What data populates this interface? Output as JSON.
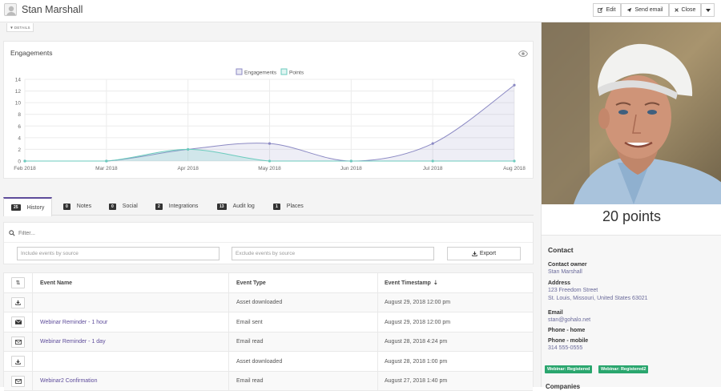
{
  "header": {
    "title": "Stan Marshall",
    "edit_label": "Edit",
    "send_email_label": "Send email",
    "close_label": "Close"
  },
  "details_toggle": "DETAILS",
  "engagements": {
    "title": "Engagements"
  },
  "chart_data": {
    "type": "area",
    "title": "",
    "categories": [
      "Feb 2018",
      "Mar 2018",
      "Apr 2018",
      "May 2018",
      "Jun 2018",
      "Jul 2018",
      "Aug 2018"
    ],
    "series": [
      {
        "name": "Engagements",
        "values": [
          0,
          0,
          2,
          3,
          0,
          3,
          13
        ],
        "color": "#8c8ac4"
      },
      {
        "name": "Points",
        "values": [
          0,
          0,
          2,
          0,
          0,
          0,
          0
        ],
        "color": "#6bcbbd"
      }
    ],
    "ylim": [
      0,
      14
    ],
    "yticks": [
      0,
      2,
      4,
      6,
      8,
      10,
      12,
      14
    ],
    "grid": true,
    "legend_position": "top-center"
  },
  "tabs": [
    {
      "count": "25",
      "label": "History"
    },
    {
      "count": "0",
      "label": "Notes"
    },
    {
      "count": "0",
      "label": "Social"
    },
    {
      "count": "2",
      "label": "Integrations"
    },
    {
      "count": "13",
      "label": "Audit log"
    },
    {
      "count": "1",
      "label": "Places"
    }
  ],
  "filter": {
    "placeholder": "Filter...",
    "include_placeholder": "Include events by source",
    "exclude_placeholder": "Exclude events by source",
    "export_label": "Export"
  },
  "table": {
    "headers": {
      "name": "Event Name",
      "type": "Event Type",
      "timestamp": "Event Timestamp"
    },
    "rows": [
      {
        "name": "",
        "type": "Asset downloaded",
        "timestamp": "August 29, 2018 12:00 pm",
        "icon": "download-icon"
      },
      {
        "name": "Webinar Reminder - 1 hour",
        "type": "Email sent",
        "timestamp": "August 29, 2018 12:00 pm",
        "icon": "envelope-icon"
      },
      {
        "name": "Webinar Reminder - 1 day",
        "type": "Email read",
        "timestamp": "August 28, 2018 4:24 pm",
        "icon": "envelope-open-icon"
      },
      {
        "name": "",
        "type": "Asset downloaded",
        "timestamp": "August 28, 2018 1:00 pm",
        "icon": "download-icon"
      },
      {
        "name": "Webinar2 Confirmation",
        "type": "Email read",
        "timestamp": "August 27, 2018 1:40 pm",
        "icon": "envelope-open-icon"
      }
    ]
  },
  "sidebar": {
    "points": "20 points",
    "contact_heading": "Contact",
    "owner_label": "Contact owner",
    "owner_value": "Stan Marshall",
    "address_label": "Address",
    "address_line1": "123 Freedom Street",
    "address_line2": "St. Louis, Missouri, United States 63021",
    "email_label": "Email",
    "email_value": "stan@gohalo.net",
    "phone_home_label": "Phone - home",
    "phone_mobile_label": "Phone - mobile",
    "phone_mobile_value": "314 555-0555",
    "tags": [
      "Webinar: Registered",
      "Webinar: Registered2"
    ],
    "companies_label": "Companies"
  }
}
